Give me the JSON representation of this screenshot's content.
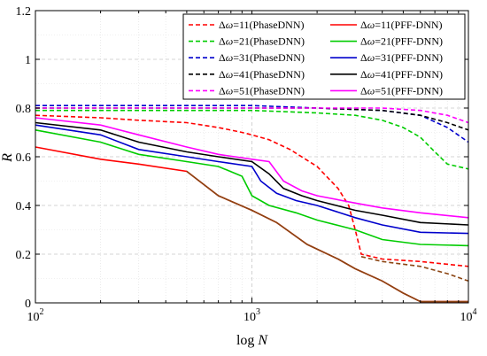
{
  "chart_data": {
    "type": "line",
    "xlabel_prefix": "log",
    "xlabel_var": "N",
    "ylabel": "R",
    "xscale": "log",
    "xlim": [
      100,
      10000
    ],
    "ylim": [
      0,
      1.2
    ],
    "yticks": [
      "0",
      "0.2",
      "0.4",
      "0.6",
      "0.8",
      "1",
      "1.2"
    ],
    "xticks": [
      {
        "base": "10",
        "exp": "2",
        "value": 100
      },
      {
        "base": "10",
        "exp": "3",
        "value": 1000
      },
      {
        "base": "10",
        "exp": "4",
        "value": 10000
      }
    ],
    "grid": true,
    "legend_position": "top-right",
    "series": [
      {
        "label_value": "11",
        "method": "PhaseDNN",
        "color": "#ff0000",
        "dash": true,
        "x": [
          100,
          200,
          300,
          500,
          700,
          900,
          1000,
          1200,
          1500,
          2000,
          2500,
          2800,
          3000,
          3200,
          4000,
          6000,
          10000
        ],
        "y": [
          0.77,
          0.76,
          0.75,
          0.74,
          0.72,
          0.7,
          0.69,
          0.67,
          0.63,
          0.56,
          0.47,
          0.4,
          0.3,
          0.2,
          0.18,
          0.17,
          0.15
        ]
      },
      {
        "label_value": "21",
        "method": "PhaseDNN",
        "color": "#00cc00",
        "dash": true,
        "x": [
          100,
          200,
          500,
          1000,
          2000,
          3000,
          4000,
          5000,
          6000,
          7000,
          8000,
          10000
        ],
        "y": [
          0.79,
          0.79,
          0.79,
          0.79,
          0.78,
          0.77,
          0.75,
          0.72,
          0.68,
          0.62,
          0.57,
          0.55
        ]
      },
      {
        "label_value": "31",
        "method": "PhaseDNN",
        "color": "#0000cc",
        "dash": true,
        "x": [
          100,
          500,
          1000,
          2000,
          4000,
          6000,
          8000,
          10000
        ],
        "y": [
          0.81,
          0.81,
          0.81,
          0.8,
          0.79,
          0.77,
          0.72,
          0.66
        ]
      },
      {
        "label_value": "41",
        "method": "PhaseDNN",
        "color": "#000000",
        "dash": true,
        "x": [
          100,
          500,
          1000,
          2000,
          4000,
          6000,
          8000,
          10000
        ],
        "y": [
          0.8,
          0.8,
          0.8,
          0.8,
          0.79,
          0.77,
          0.74,
          0.71
        ]
      },
      {
        "label_value": "51",
        "method": "PhaseDNN",
        "color": "#ff00ff",
        "dash": true,
        "x": [
          100,
          500,
          1000,
          2000,
          4000,
          6000,
          8000,
          10000
        ],
        "y": [
          0.8,
          0.8,
          0.8,
          0.8,
          0.8,
          0.79,
          0.77,
          0.74
        ]
      },
      {
        "label_value": "11",
        "method": "PFF-DNN",
        "color": "#ff0000",
        "dash": false,
        "x": [
          100,
          200,
          300,
          500,
          700,
          1000,
          1300,
          1800,
          2500,
          3000,
          4000,
          5000,
          6000,
          10000
        ],
        "y": [
          0.64,
          0.59,
          0.57,
          0.54,
          0.44,
          0.38,
          0.33,
          0.24,
          0.18,
          0.14,
          0.09,
          0.04,
          0.005,
          0.005
        ]
      },
      {
        "label_value": "21",
        "method": "PFF-DNN",
        "color": "#00cc00",
        "dash": false,
        "x": [
          100,
          200,
          300,
          500,
          700,
          900,
          1000,
          1200,
          1600,
          2000,
          3000,
          4000,
          6000,
          10000
        ],
        "y": [
          0.71,
          0.66,
          0.61,
          0.58,
          0.56,
          0.52,
          0.44,
          0.4,
          0.37,
          0.34,
          0.3,
          0.26,
          0.24,
          0.235
        ]
      },
      {
        "label_value": "31",
        "method": "PFF-DNN",
        "color": "#0000cc",
        "dash": false,
        "x": [
          100,
          200,
          300,
          500,
          700,
          1000,
          1100,
          1300,
          1600,
          2000,
          3000,
          4000,
          6000,
          10000
        ],
        "y": [
          0.73,
          0.69,
          0.63,
          0.6,
          0.58,
          0.56,
          0.5,
          0.45,
          0.42,
          0.4,
          0.35,
          0.32,
          0.29,
          0.285
        ]
      },
      {
        "label_value": "41",
        "method": "PFF-DNN",
        "color": "#000000",
        "dash": false,
        "x": [
          100,
          200,
          300,
          500,
          700,
          1000,
          1200,
          1400,
          1700,
          2000,
          3000,
          4000,
          6000,
          10000
        ],
        "y": [
          0.74,
          0.71,
          0.66,
          0.62,
          0.6,
          0.58,
          0.53,
          0.47,
          0.44,
          0.42,
          0.38,
          0.36,
          0.33,
          0.32
        ]
      },
      {
        "label_value": "51",
        "method": "PFF-DNN",
        "color": "#ff00ff",
        "dash": false,
        "x": [
          100,
          200,
          300,
          500,
          700,
          1000,
          1200,
          1400,
          1700,
          2000,
          3000,
          4000,
          6000,
          10000
        ],
        "y": [
          0.76,
          0.73,
          0.69,
          0.64,
          0.61,
          0.59,
          0.58,
          0.5,
          0.46,
          0.44,
          0.41,
          0.39,
          0.37,
          0.35
        ]
      }
    ],
    "overlay_series": [
      {
        "color": "#8b4513",
        "dash": false,
        "x": [
          500,
          700,
          1000,
          1300,
          1800,
          2500,
          3000,
          4000,
          5000,
          6000,
          10000
        ],
        "y": [
          0.54,
          0.44,
          0.38,
          0.33,
          0.24,
          0.18,
          0.14,
          0.09,
          0.04,
          0.005,
          0.005
        ]
      },
      {
        "color": "#8b4513",
        "dash": true,
        "x": [
          3200,
          4000,
          6000,
          8000,
          10000
        ],
        "y": [
          0.19,
          0.17,
          0.15,
          0.12,
          0.09
        ]
      }
    ]
  }
}
